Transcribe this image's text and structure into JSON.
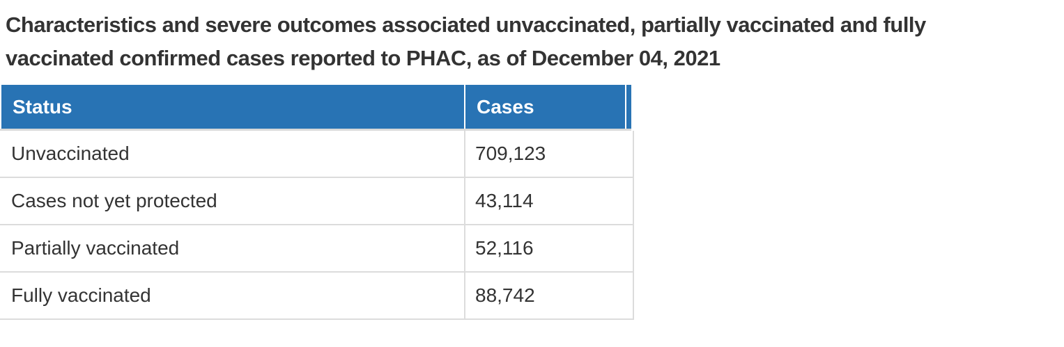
{
  "title": {
    "text": "Characteristics and severe outcomes associated unvaccinated, partially vaccinated and fully vaccinated confirmed cases reported to PHAC, as of December 04, 2021",
    "lines": [
      "Characteristics and severe outcomes associated unvaccinated, partially vaccinated and fully",
      "vaccinated confirmed cases reported to PHAC, as of December 04, 2021"
    ]
  },
  "table": {
    "columns": [
      {
        "key": "status",
        "label": "Status"
      },
      {
        "key": "cases",
        "label": "Cases"
      }
    ],
    "rows": [
      {
        "status": "Unvaccinated",
        "cases": "709,123"
      },
      {
        "status": "Cases not yet protected",
        "cases": "43,114"
      },
      {
        "status": "Partially vaccinated",
        "cases": "52,116"
      },
      {
        "status": "Fully vaccinated",
        "cases": "88,742"
      }
    ],
    "colors": {
      "header_bg": "#2873b4",
      "header_text": "#ffffff",
      "body_text": "#333333",
      "border": "#dcdcdc"
    }
  }
}
